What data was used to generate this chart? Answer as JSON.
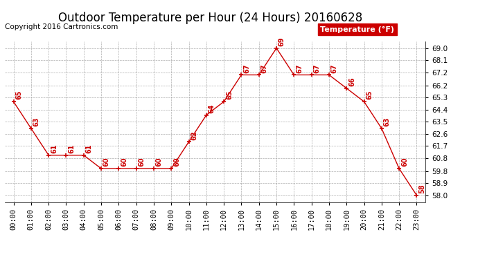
{
  "title": "Outdoor Temperature per Hour (24 Hours) 20160628",
  "copyright": "Copyright 2016 Cartronics.com",
  "legend_label": "Temperature (°F)",
  "hours": [
    0,
    1,
    2,
    3,
    4,
    5,
    6,
    7,
    8,
    9,
    10,
    11,
    12,
    13,
    14,
    15,
    16,
    17,
    18,
    19,
    20,
    21,
    22,
    23
  ],
  "hour_labels": [
    "00:00",
    "01:00",
    "02:00",
    "03:00",
    "04:00",
    "05:00",
    "06:00",
    "07:00",
    "08:00",
    "09:00",
    "10:00",
    "11:00",
    "12:00",
    "13:00",
    "14:00",
    "15:00",
    "16:00",
    "17:00",
    "18:00",
    "19:00",
    "20:00",
    "21:00",
    "22:00",
    "23:00"
  ],
  "temperatures": [
    65,
    63,
    61,
    61,
    61,
    60,
    60,
    60,
    60,
    60,
    62,
    64,
    65,
    67,
    67,
    69,
    67,
    67,
    67,
    66,
    65,
    63,
    60,
    58
  ],
  "ylim": [
    57.5,
    69.5
  ],
  "yticks": [
    58.0,
    58.9,
    59.8,
    60.8,
    61.7,
    62.6,
    63.5,
    64.4,
    65.3,
    66.2,
    67.2,
    68.1,
    69.0
  ],
  "line_color": "#cc0000",
  "marker_color": "#cc0000",
  "label_color": "#cc0000",
  "bg_color": "#ffffff",
  "grid_color": "#999999",
  "legend_bg": "#cc0000",
  "legend_text_color": "#ffffff",
  "title_fontsize": 12,
  "copyright_fontsize": 7.5,
  "label_fontsize": 7,
  "tick_fontsize": 7.5,
  "legend_fontsize": 8
}
